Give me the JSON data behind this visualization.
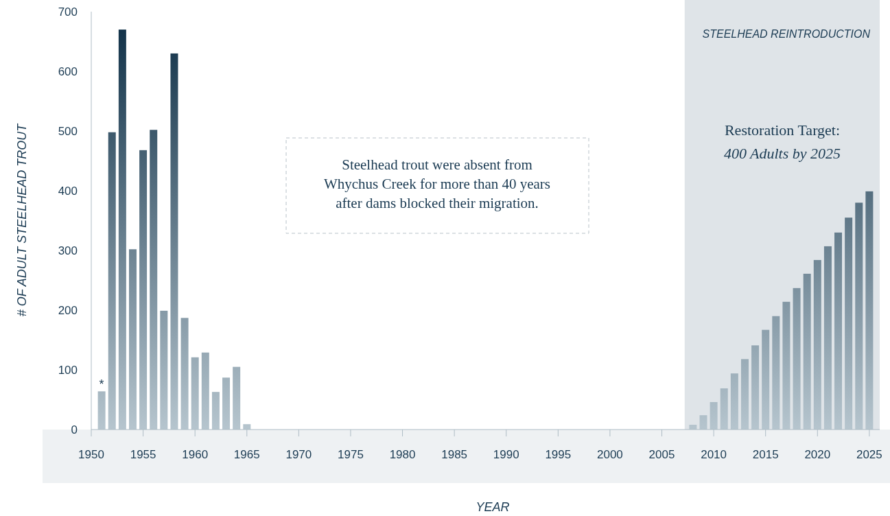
{
  "chart_data": {
    "type": "bar",
    "xlabel": "YEAR",
    "ylabel": "# OF ADULT STEELHEAD TROUT",
    "x": [
      1951,
      1952,
      1953,
      1954,
      1955,
      1956,
      1957,
      1958,
      1959,
      1960,
      1961,
      1962,
      1963,
      1964,
      1965,
      2008,
      2009,
      2010,
      2011,
      2012,
      2013,
      2014,
      2015,
      2016,
      2017,
      2018,
      2019,
      2020,
      2021,
      2022,
      2023,
      2024,
      2025
    ],
    "values": [
      64,
      498,
      670,
      302,
      468,
      502,
      199,
      630,
      187,
      121,
      129,
      63,
      87,
      105,
      9,
      8,
      24,
      46,
      69,
      94,
      118,
      141,
      167,
      190,
      214,
      237,
      261,
      284,
      307,
      330,
      355,
      380,
      399
    ],
    "color": "#0c2d44",
    "xlim": [
      1950,
      2026
    ],
    "xticks": [
      1950,
      1955,
      1960,
      1965,
      1970,
      1975,
      1980,
      1985,
      1990,
      1995,
      2000,
      2005,
      2010,
      2015,
      2020,
      2025
    ],
    "ylim": [
      0,
      700
    ],
    "yticks": [
      0,
      100,
      200,
      300,
      400,
      500,
      600,
      700
    ],
    "grid": false,
    "bands": [
      {
        "axis": "x",
        "from": 2007.2,
        "to": 2026,
        "label": "STEELHEAD REINTRODUCTION",
        "color": "#dfe4e8"
      }
    ],
    "annotations": [
      {
        "text": "*",
        "x": 1951,
        "y": 64
      },
      "Steelhead trout were absent from Whychus Creek for more than 40 years after dams blocked their migration.",
      "Restoration Target:",
      "400 Adults by 2025"
    ]
  }
}
